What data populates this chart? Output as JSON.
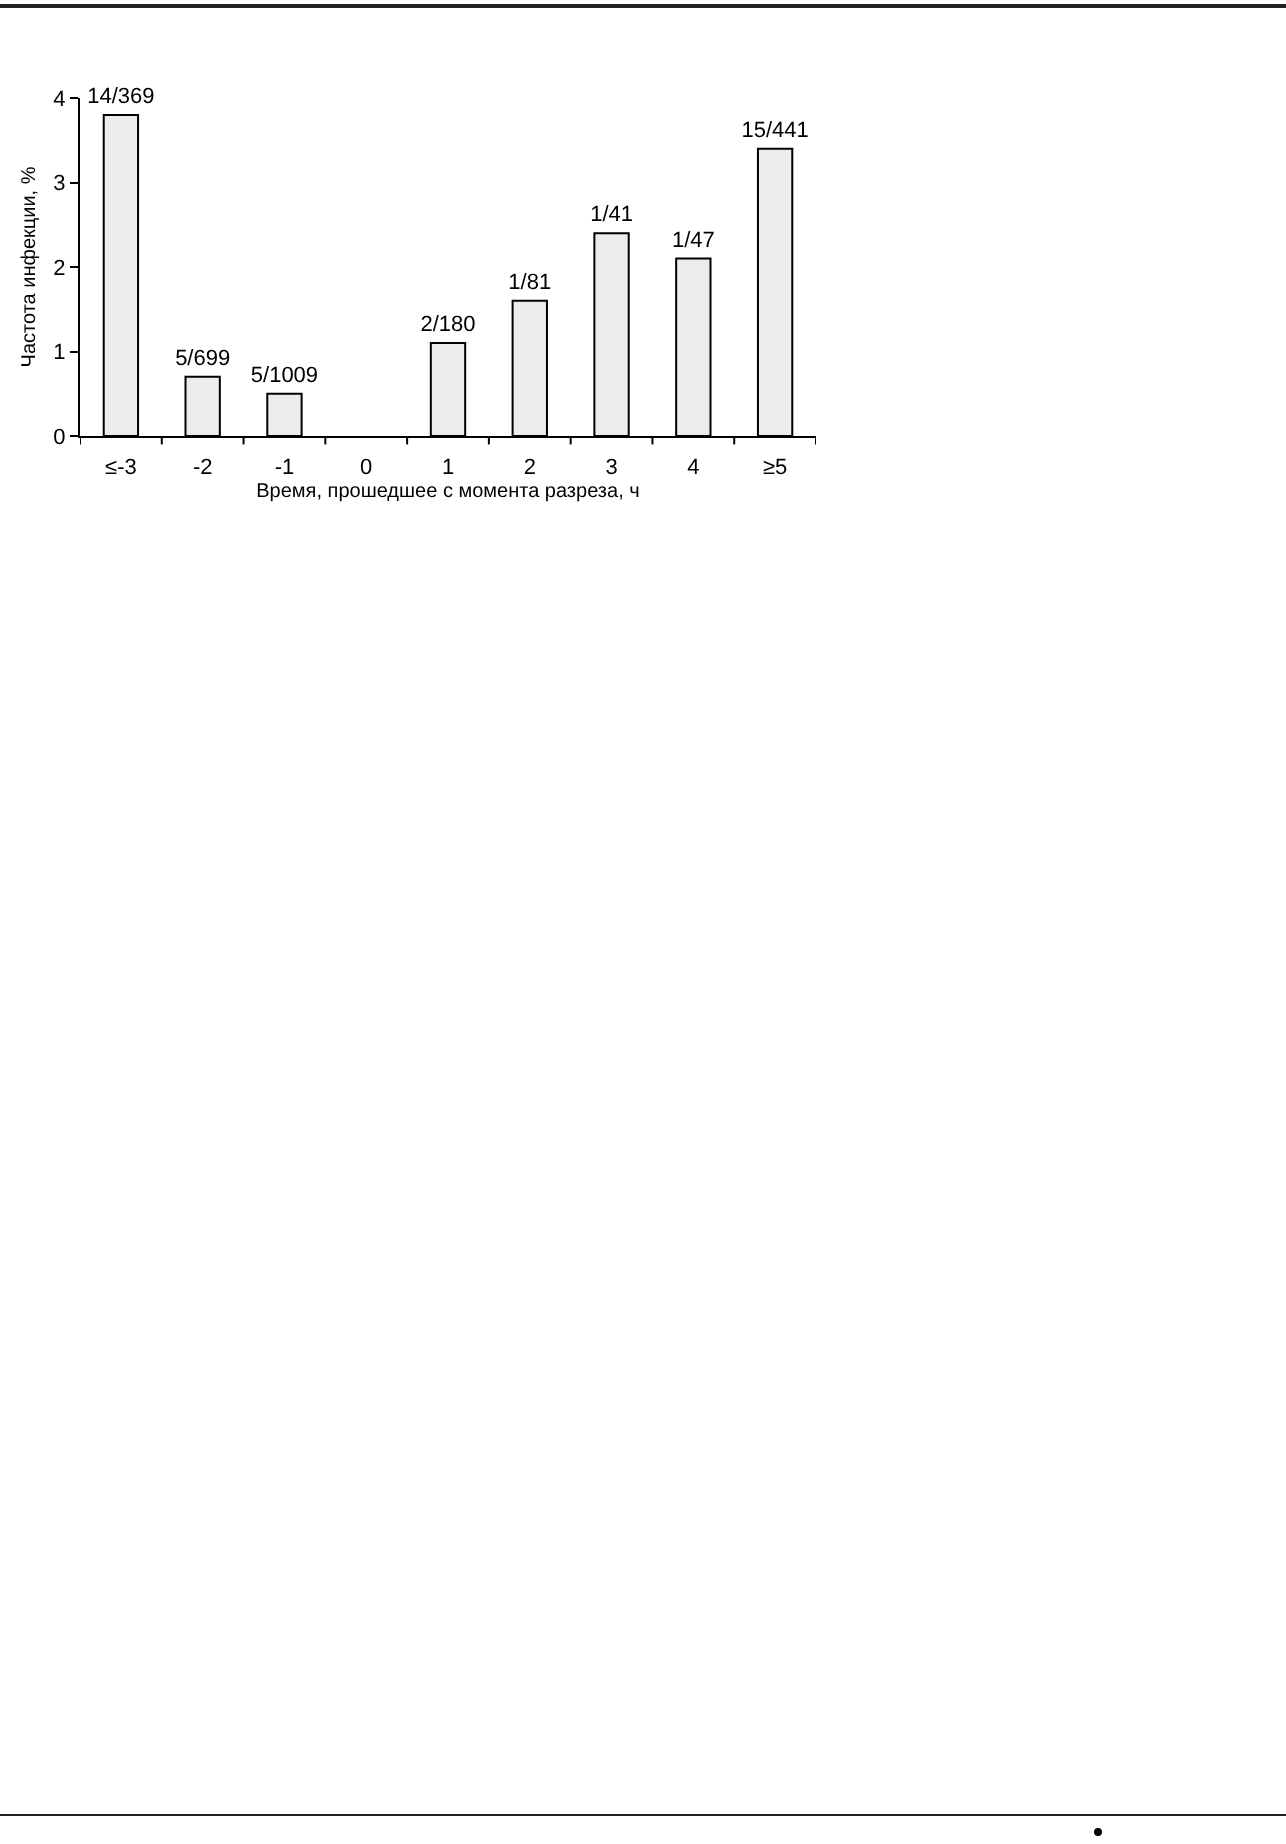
{
  "chart_data": {
    "type": "bar",
    "xlabel": "Время, прошедшее с момента разреза, ч",
    "ylabel": "Частота инфекции, %",
    "categories": [
      "≤-3",
      "-2",
      "-1",
      "0",
      "1",
      "2",
      "3",
      "4",
      "≥5"
    ],
    "values": [
      3.8,
      0.7,
      0.5,
      0,
      1.1,
      1.6,
      2.4,
      2.1,
      3.4
    ],
    "value_labels": [
      "14/369",
      "5/699",
      "5/1009",
      null,
      "2/180",
      "1/81",
      "1/41",
      "1/47",
      "15/441"
    ],
    "color": "#ececec",
    "ylim": [
      0,
      4
    ],
    "yticks": [
      0,
      1,
      2,
      3,
      4
    ]
  }
}
